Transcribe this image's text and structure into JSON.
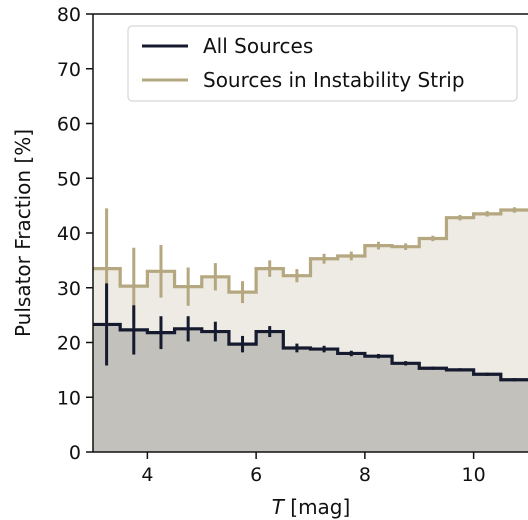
{
  "chart_data": {
    "type": "step",
    "xlabel_var": "T",
    "xlabel_unit": " [mag]",
    "ylabel": "Pulsator Fraction [%]",
    "xlim": [
      3.0,
      11.0
    ],
    "ylim": [
      0,
      80
    ],
    "xticks": [
      4,
      6,
      8,
      10
    ],
    "yticks": [
      0,
      10,
      20,
      30,
      40,
      50,
      60,
      70,
      80
    ],
    "grid": false,
    "legend_position": "top-left",
    "bin_edges": [
      3.0,
      3.5,
      4.0,
      4.5,
      5.0,
      5.5,
      6.0,
      6.5,
      7.0,
      7.5,
      8.0,
      8.5,
      9.0,
      9.5,
      10.0,
      10.5,
      11.0
    ],
    "bin_centers": [
      3.25,
      3.75,
      4.25,
      4.75,
      5.25,
      5.75,
      6.25,
      6.75,
      7.25,
      7.75,
      8.25,
      8.75,
      9.25,
      9.75,
      10.25,
      10.75
    ],
    "series": [
      {
        "name": "All Sources",
        "color": "#151a2e",
        "fill": "#c2c1bb",
        "values": [
          23.3,
          22.3,
          21.8,
          22.5,
          22.0,
          19.7,
          22.0,
          19.0,
          18.8,
          18.0,
          17.5,
          16.2,
          15.3,
          15.0,
          14.2,
          13.2
        ],
        "errors": [
          7.5,
          4.5,
          3.0,
          2.3,
          1.8,
          1.5,
          1.0,
          0.8,
          0.6,
          0.5,
          0.4,
          0.4,
          0.3,
          0.3,
          0.3,
          0.3
        ]
      },
      {
        "name": "Sources in Instability Strip",
        "color": "#b5a77f",
        "fill": "#edebe4",
        "values": [
          33.5,
          30.3,
          33.0,
          30.2,
          32.0,
          29.2,
          33.5,
          32.2,
          35.3,
          35.8,
          37.7,
          37.5,
          39.0,
          42.8,
          43.5,
          44.2
        ],
        "errors": [
          11.0,
          7.0,
          4.8,
          3.5,
          2.5,
          2.0,
          1.5,
          1.2,
          0.9,
          0.8,
          0.7,
          0.6,
          0.5,
          0.5,
          0.5,
          0.5
        ]
      }
    ]
  }
}
